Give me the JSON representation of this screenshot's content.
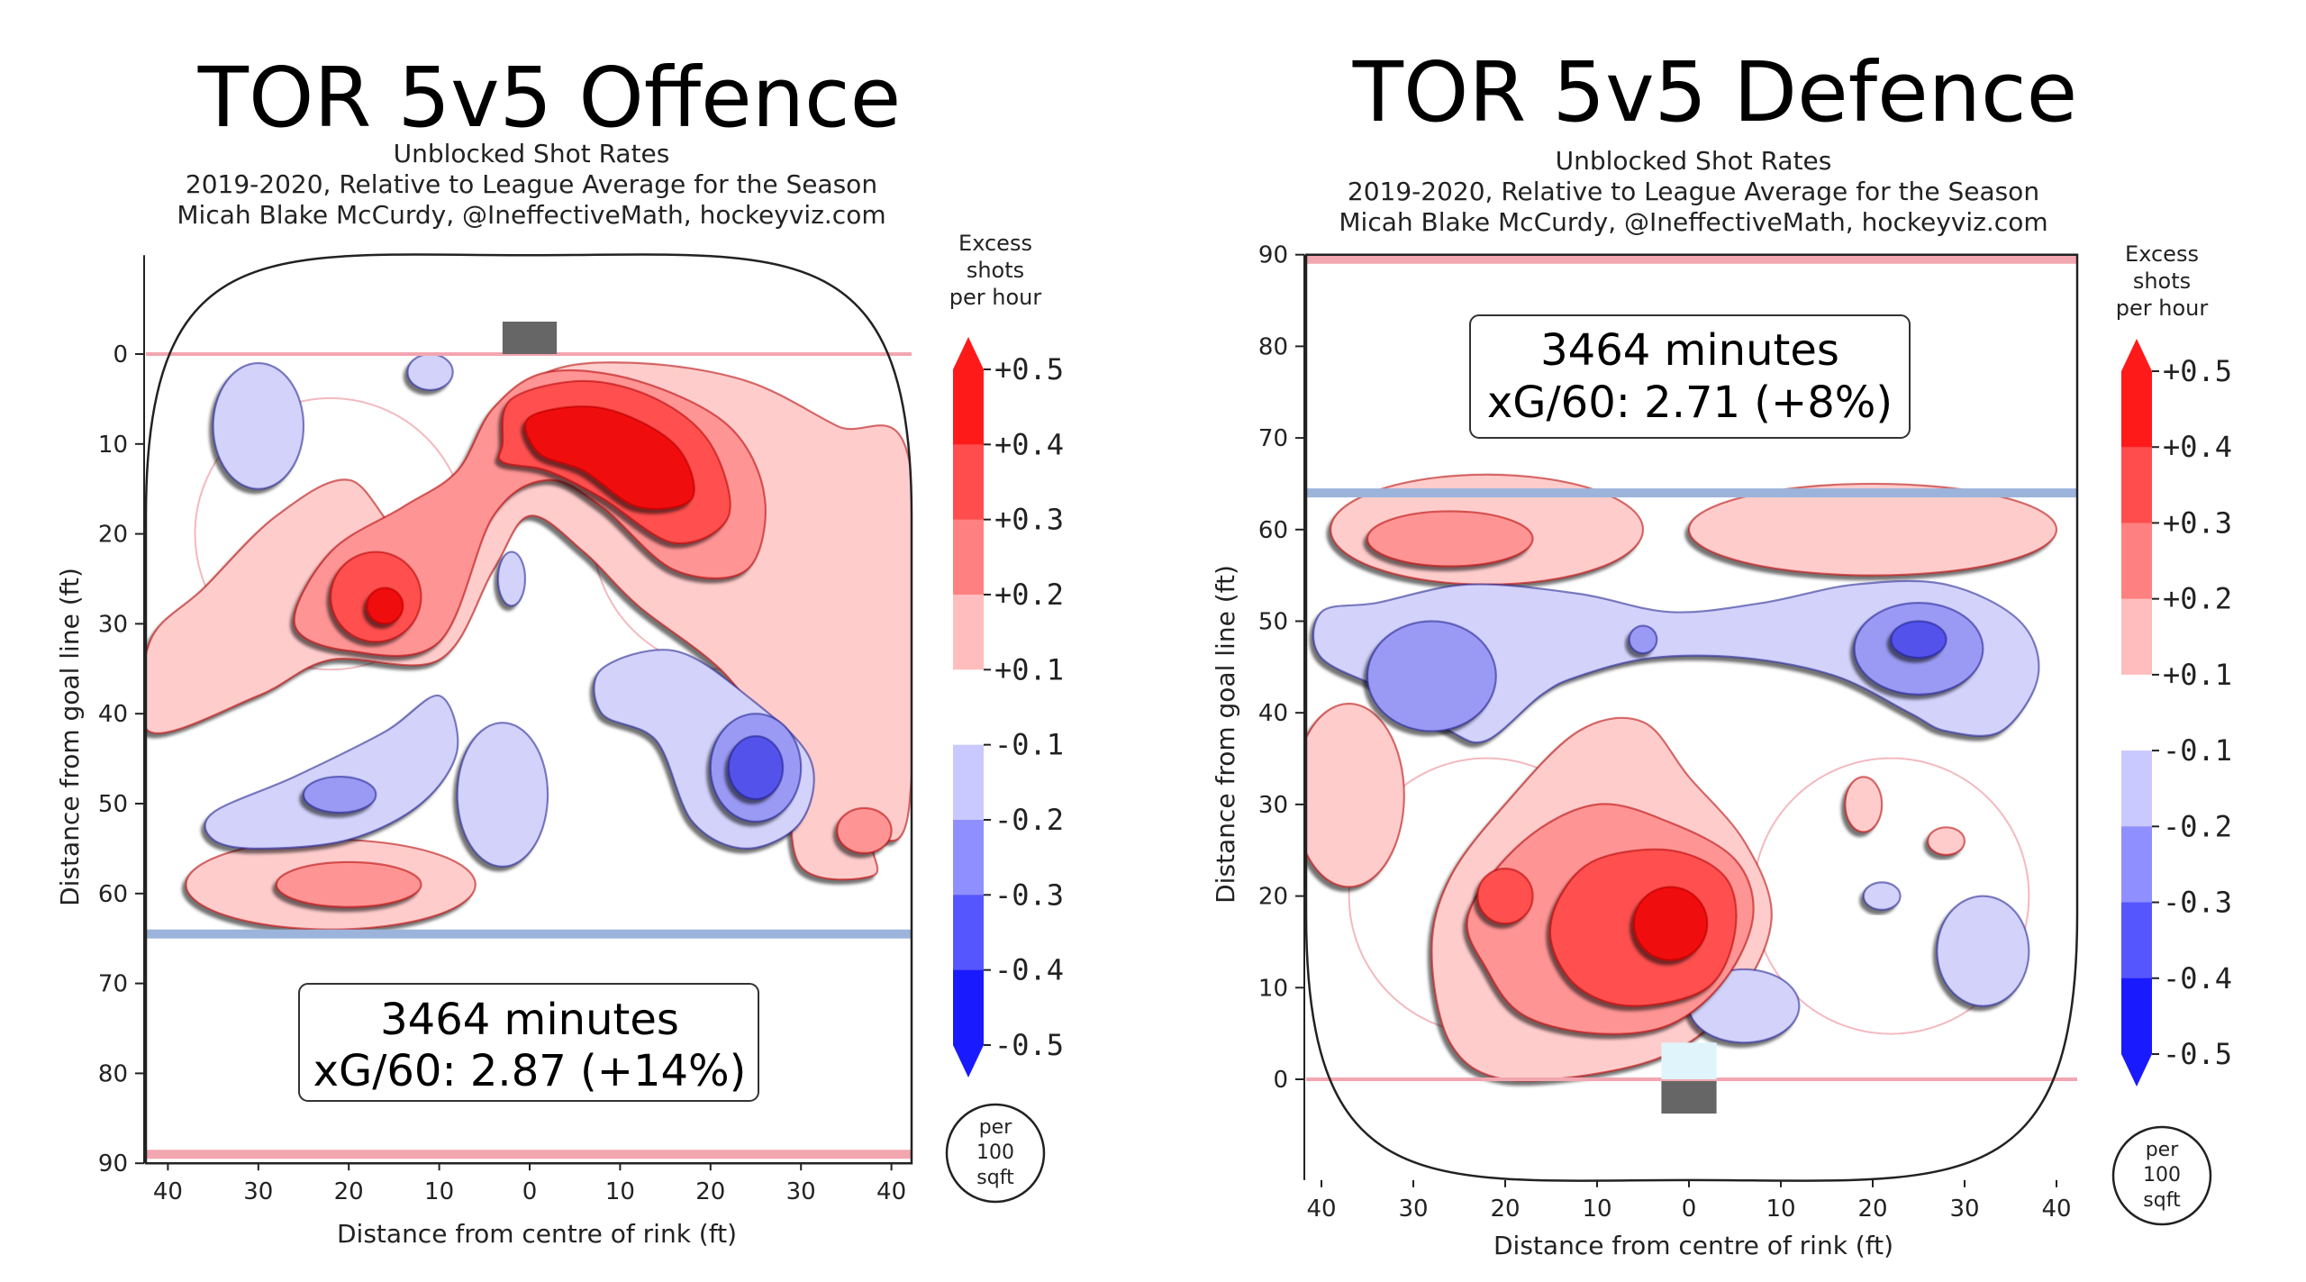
{
  "chart_data": [
    {
      "type": "heatmap",
      "title": "TOR 5v5 Offence",
      "subtitle": [
        "Unblocked Shot Rates",
        "2019-2020, Relative to League Average for the Season",
        "Micah Blake McCurdy, @IneffectiveMath, hockeyviz.com"
      ],
      "xlabel": "Distance from centre of rink (ft)",
      "ylabel": "Distance from goal line (ft)",
      "x_ticks": [
        "40",
        "30",
        "20",
        "10",
        "0",
        "10",
        "20",
        "30",
        "40"
      ],
      "y_ticks": [
        "0",
        "10",
        "20",
        "30",
        "40",
        "50",
        "60",
        "70",
        "80",
        "90"
      ],
      "xlim": [
        -42,
        42
      ],
      "ylim": [
        -11,
        90
      ],
      "y_inverted": true,
      "annotation": [
        "3464 minutes",
        "xG/60: 2.87 (+14%)"
      ],
      "regions": [
        {
          "level": 0.15,
          "shape": "blob",
          "points": [
            [
              -42,
              32
            ],
            [
              -36,
              26
            ],
            [
              -28,
              18
            ],
            [
              -20,
              14
            ],
            [
              -14,
              20
            ],
            [
              -8,
              16
            ],
            [
              -4,
              8
            ],
            [
              2,
              2
            ],
            [
              12,
              1
            ],
            [
              24,
              3
            ],
            [
              34,
              8
            ],
            [
              42,
              12
            ],
            [
              42,
              50
            ],
            [
              38,
              54
            ],
            [
              38,
              58
            ],
            [
              30,
              57
            ],
            [
              28,
              46
            ],
            [
              22,
              36
            ],
            [
              12,
              28
            ],
            [
              6,
              22
            ],
            [
              0,
              18
            ],
            [
              -4,
              24
            ],
            [
              -10,
              34
            ],
            [
              -22,
              34
            ],
            [
              -30,
              38
            ],
            [
              -42,
              42
            ]
          ]
        },
        {
          "level": 0.15,
          "shape": "ellipse",
          "cx": -22,
          "cy": 59,
          "rx": 16,
          "ry": 5
        },
        {
          "level": 0.25,
          "shape": "blob",
          "points": [
            [
              -22,
              22
            ],
            [
              -14,
              17
            ],
            [
              -8,
              13
            ],
            [
              -4,
              6
            ],
            [
              2,
              2
            ],
            [
              12,
              3
            ],
            [
              22,
              8
            ],
            [
              26,
              16
            ],
            [
              24,
              24
            ],
            [
              16,
              24
            ],
            [
              8,
              17
            ],
            [
              2,
              14
            ],
            [
              -4,
              18
            ],
            [
              -10,
              32
            ],
            [
              -20,
              33
            ],
            [
              -26,
              30
            ]
          ]
        },
        {
          "level": 0.25,
          "shape": "ellipse",
          "cx": -20,
          "cy": 59,
          "rx": 8,
          "ry": 2.5
        },
        {
          "level": 0.25,
          "shape": "ellipse",
          "cx": 37,
          "cy": 53,
          "rx": 3,
          "ry": 2.5
        },
        {
          "level": 0.35,
          "shape": "blob",
          "points": [
            [
              -2,
              5
            ],
            [
              6,
              3
            ],
            [
              14,
              5
            ],
            [
              20,
              10
            ],
            [
              22,
              18
            ],
            [
              16,
              21
            ],
            [
              8,
              16
            ],
            [
              2,
              13
            ],
            [
              -3,
              12
            ],
            [
              -3,
              10
            ]
          ]
        },
        {
          "level": 0.35,
          "shape": "ellipse",
          "cx": -17,
          "cy": 27,
          "rx": 5,
          "ry": 5
        },
        {
          "level": 0.45,
          "shape": "blob",
          "points": [
            [
              0,
              7
            ],
            [
              8,
              6
            ],
            [
              16,
              10
            ],
            [
              18,
              16
            ],
            [
              12,
              17
            ],
            [
              6,
              13
            ],
            [
              1,
              11
            ]
          ]
        },
        {
          "level": 0.45,
          "shape": "ellipse",
          "cx": -16,
          "cy": 28,
          "rx": 2,
          "ry": 2
        },
        {
          "level": -0.15,
          "shape": "ellipse",
          "cx": -30,
          "cy": 8,
          "rx": 5,
          "ry": 7
        },
        {
          "level": -0.15,
          "shape": "ellipse",
          "cx": -11,
          "cy": 2,
          "rx": 2.5,
          "ry": 2
        },
        {
          "level": -0.15,
          "shape": "ellipse",
          "cx": -2,
          "cy": 25,
          "rx": 1.5,
          "ry": 3
        },
        {
          "level": -0.15,
          "shape": "blob",
          "points": [
            [
              -35,
              51
            ],
            [
              -26,
              47
            ],
            [
              -16,
              42
            ],
            [
              -10,
              38
            ],
            [
              -8,
              44
            ],
            [
              -12,
              50
            ],
            [
              -20,
              54
            ],
            [
              -30,
              55
            ],
            [
              -35,
              54
            ]
          ]
        },
        {
          "level": -0.15,
          "shape": "ellipse",
          "cx": -3,
          "cy": 49,
          "rx": 5,
          "ry": 8
        },
        {
          "level": -0.15,
          "shape": "blob",
          "points": [
            [
              8,
              35
            ],
            [
              16,
              33
            ],
            [
              24,
              38
            ],
            [
              31,
              45
            ],
            [
              30,
              52
            ],
            [
              24,
              55
            ],
            [
              18,
              52
            ],
            [
              14,
              43
            ],
            [
              8,
              40
            ]
          ]
        },
        {
          "level": -0.25,
          "shape": "ellipse",
          "cx": -21,
          "cy": 49,
          "rx": 4,
          "ry": 2
        },
        {
          "level": -0.25,
          "shape": "ellipse",
          "cx": 25,
          "cy": 46,
          "rx": 5,
          "ry": 6
        },
        {
          "level": -0.35,
          "shape": "ellipse",
          "cx": 25,
          "cy": 46,
          "rx": 3,
          "ry": 3.5
        }
      ],
      "blue_line_y": 64.5,
      "goal_line_y": 0,
      "end_line_y": 89
    },
    {
      "type": "heatmap",
      "title": "TOR 5v5 Defence",
      "subtitle": [
        "Unblocked Shot Rates",
        "2019-2020, Relative to League Average for the Season",
        "Micah Blake McCurdy, @IneffectiveMath, hockeyviz.com"
      ],
      "xlabel": "Distance from centre of rink (ft)",
      "ylabel": "Distance from goal line (ft)",
      "x_ticks": [
        "40",
        "30",
        "20",
        "10",
        "0",
        "10",
        "20",
        "30",
        "40"
      ],
      "y_ticks": [
        "90",
        "80",
        "70",
        "60",
        "50",
        "40",
        "30",
        "20",
        "10",
        "0"
      ],
      "xlim": [
        -42,
        42
      ],
      "ylim": [
        -11,
        90
      ],
      "y_inverted": false,
      "annotation": [
        "3464 minutes",
        "xG/60: 2.71 (+8%)"
      ],
      "regions": [
        {
          "level": 0.15,
          "shape": "ellipse",
          "cx": -22,
          "cy": 60,
          "rx": 17,
          "ry": 6
        },
        {
          "level": 0.15,
          "shape": "ellipse",
          "cx": 20,
          "cy": 60,
          "rx": 20,
          "ry": 5
        },
        {
          "level": 0.15,
          "shape": "ellipse",
          "cx": -37,
          "cy": 31,
          "rx": 6,
          "ry": 10
        },
        {
          "level": 0.15,
          "shape": "blob",
          "points": [
            [
              -26,
              22
            ],
            [
              -20,
              30
            ],
            [
              -12,
              38
            ],
            [
              -5,
              39
            ],
            [
              0,
              33
            ],
            [
              6,
              26
            ],
            [
              9,
              18
            ],
            [
              6,
              10
            ],
            [
              0,
              4
            ],
            [
              -8,
              1
            ],
            [
              -20,
              0
            ],
            [
              -26,
              4
            ],
            [
              -28,
              14
            ]
          ]
        },
        {
          "level": 0.15,
          "shape": "ellipse",
          "cx": 19,
          "cy": 30,
          "rx": 2,
          "ry": 3
        },
        {
          "level": 0.15,
          "shape": "ellipse",
          "cx": 28,
          "cy": 26,
          "rx": 2,
          "ry": 1.5
        },
        {
          "level": 0.25,
          "shape": "ellipse",
          "cx": -26,
          "cy": 59,
          "rx": 9,
          "ry": 3
        },
        {
          "level": 0.25,
          "shape": "blob",
          "points": [
            [
              -24,
              18
            ],
            [
              -18,
              26
            ],
            [
              -10,
              30
            ],
            [
              -2,
              28
            ],
            [
              5,
              24
            ],
            [
              7,
              18
            ],
            [
              4,
              11
            ],
            [
              -2,
              6
            ],
            [
              -10,
              5
            ],
            [
              -18,
              7
            ],
            [
              -22,
              12
            ]
          ]
        },
        {
          "level": 0.35,
          "shape": "blob",
          "points": [
            [
              -14,
              20
            ],
            [
              -10,
              24
            ],
            [
              -2,
              25
            ],
            [
              4,
              22
            ],
            [
              5,
              16
            ],
            [
              2,
              10
            ],
            [
              -6,
              8
            ],
            [
              -12,
              10
            ],
            [
              -15,
              15
            ]
          ]
        },
        {
          "level": 0.35,
          "shape": "ellipse",
          "cx": -20,
          "cy": 20,
          "rx": 3,
          "ry": 3
        },
        {
          "level": 0.45,
          "shape": "ellipse",
          "cx": -2,
          "cy": 17,
          "rx": 4,
          "ry": 4
        },
        {
          "level": -0.15,
          "shape": "blob",
          "points": [
            [
              -40,
              51
            ],
            [
              -34,
              52
            ],
            [
              -24,
              54
            ],
            [
              -12,
              53
            ],
            [
              -2,
              51
            ],
            [
              8,
              52
            ],
            [
              18,
              54
            ],
            [
              28,
              54
            ],
            [
              36,
              50
            ],
            [
              38,
              44
            ],
            [
              34,
              38
            ],
            [
              28,
              38
            ],
            [
              24,
              40
            ],
            [
              16,
              44
            ],
            [
              6,
              46
            ],
            [
              -4,
              46
            ],
            [
              -12,
              44
            ],
            [
              -16,
              42
            ],
            [
              -22,
              37
            ],
            [
              -26,
              38
            ],
            [
              -32,
              42
            ],
            [
              -40,
              46
            ]
          ]
        },
        {
          "level": -0.15,
          "shape": "ellipse",
          "cx": 6,
          "cy": 8,
          "rx": 6,
          "ry": 4
        },
        {
          "level": -0.15,
          "shape": "ellipse",
          "cx": 32,
          "cy": 14,
          "rx": 5,
          "ry": 6
        },
        {
          "level": -0.15,
          "shape": "ellipse",
          "cx": 21,
          "cy": 20,
          "rx": 2,
          "ry": 1.5
        },
        {
          "level": -0.25,
          "shape": "ellipse",
          "cx": -28,
          "cy": 44,
          "rx": 7,
          "ry": 6
        },
        {
          "level": -0.25,
          "shape": "ellipse",
          "cx": 25,
          "cy": 47,
          "rx": 7,
          "ry": 5
        },
        {
          "level": -0.25,
          "shape": "ellipse",
          "cx": -5,
          "cy": 48,
          "rx": 1.5,
          "ry": 1.5
        },
        {
          "level": -0.35,
          "shape": "ellipse",
          "cx": 25,
          "cy": 48,
          "rx": 3,
          "ry": 2
        }
      ],
      "blue_line_y": 64,
      "goal_line_y": 0,
      "end_line_y": 89.5
    }
  ],
  "colorbar": {
    "title": [
      "Excess",
      "shots",
      "per hour"
    ],
    "labels": [
      "+0.5",
      "+0.4",
      "+0.3",
      "+0.2",
      "+0.1",
      "-0.1",
      "-0.2",
      "-0.3",
      "-0.4",
      "-0.5"
    ],
    "colors": [
      "#ff1a1a",
      "#ff4d4d",
      "#ff8080",
      "#ffbdbd",
      "#ffffff",
      "#c9c9ff",
      "#8f8fff",
      "#5656ff",
      "#1a1aff"
    ],
    "unit_label": [
      "per",
      "100",
      "sqft"
    ]
  },
  "colors": {
    "pos1": "#ffcccc",
    "pos2": "#ff9494",
    "pos3": "#ff4f4f",
    "pos4": "#f00a0a",
    "neg1": "#d2d2fb",
    "neg2": "#9a9af4",
    "neg3": "#5252ec",
    "goal_line": "#f2a6b0",
    "blue_line": "#9cb4dc",
    "net": "#666666"
  }
}
